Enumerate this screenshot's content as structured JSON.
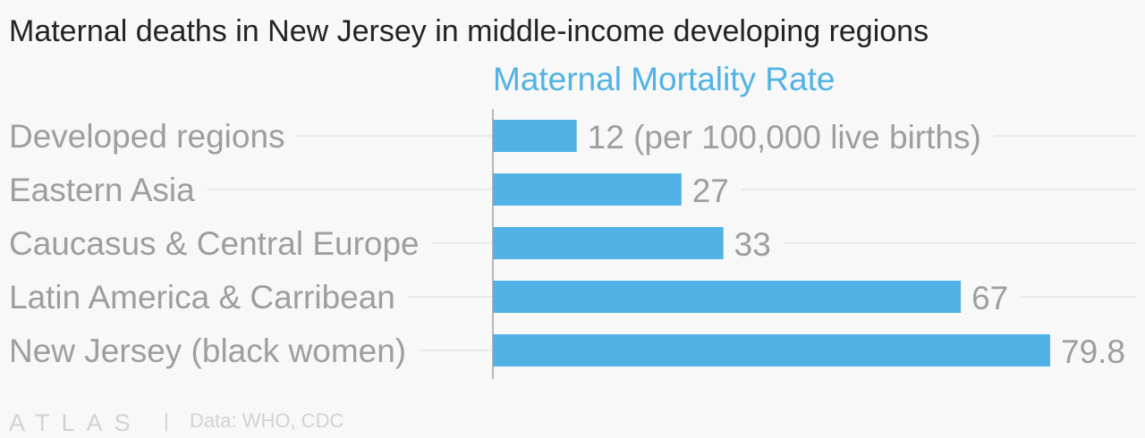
{
  "chart_data": {
    "type": "bar",
    "orientation": "horizontal",
    "title": "Maternal deaths in New Jersey in middle-income developing regions",
    "series_name": "Maternal Mortality Rate",
    "categories": [
      "Developed regions",
      "Eastern Asia",
      "Caucasus & Central Europe",
      "Latin America & Carribean",
      "New Jersey (black women)"
    ],
    "values": [
      12,
      27,
      33,
      67,
      79.8
    ],
    "value_labels": [
      "12 (per 100,000 live births)",
      "27",
      "33",
      "67",
      "79.8"
    ],
    "xlim": [
      0,
      79.8
    ],
    "grid": true,
    "bar_color": "#51b2e5"
  },
  "footer": {
    "brand": "ATLAS",
    "separator": "|",
    "source": "Data: WHO, CDC"
  }
}
